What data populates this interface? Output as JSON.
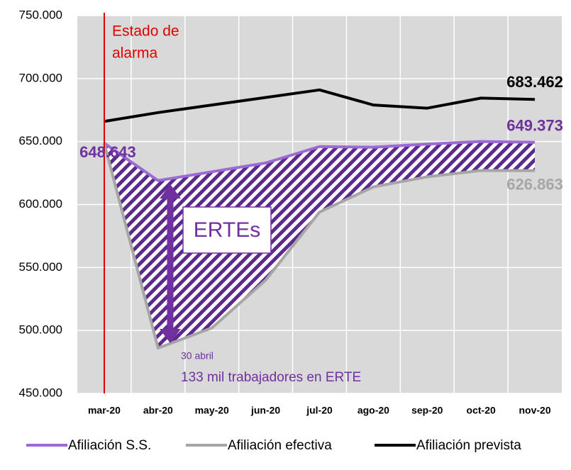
{
  "chart_data": {
    "type": "line",
    "categories": [
      "mar-20",
      "abr-20",
      "may-20",
      "jun-20",
      "jul-20",
      "ago-20",
      "sep-20",
      "oct-20",
      "nov-20"
    ],
    "series": [
      {
        "name": "Afiliación S.S.",
        "color": "#9b6ad6",
        "values": [
          648643,
          619000,
          626000,
          633000,
          646000,
          645500,
          648000,
          650000,
          649373
        ],
        "value_labels": [
          "648.643",
          null,
          null,
          null,
          null,
          null,
          null,
          null,
          "649.373"
        ],
        "label_color": "#7030a0"
      },
      {
        "name": "Afiliación efectiva",
        "color": "#a6a6a6",
        "values": [
          648643,
          486000,
          502000,
          540000,
          594000,
          614000,
          622000,
          627000,
          626863
        ],
        "value_labels": [
          null,
          null,
          null,
          null,
          null,
          null,
          null,
          null,
          "626.863"
        ],
        "label_color": "#a6a6a6"
      },
      {
        "name": "Afiliación prevista",
        "color": "#000000",
        "values": [
          666000,
          673000,
          679000,
          685000,
          691000,
          679000,
          676500,
          684500,
          683462
        ],
        "value_labels": [
          null,
          null,
          null,
          null,
          null,
          null,
          null,
          null,
          "683.462"
        ],
        "label_color": "#000000"
      }
    ],
    "ylim": [
      450000,
      750000
    ],
    "yticks": [
      {
        "value": 450000,
        "label": "450.000"
      },
      {
        "value": 500000,
        "label": "500.000"
      },
      {
        "value": 550000,
        "label": "550.000"
      },
      {
        "value": 600000,
        "label": "600.000"
      },
      {
        "value": 650000,
        "label": "650.000"
      },
      {
        "value": 700000,
        "label": "700.000"
      },
      {
        "value": 750000,
        "label": "750.000"
      }
    ],
    "grid": true,
    "legend": "bottom",
    "annotations": {
      "event": [
        "Estado de",
        "alarma"
      ],
      "box": "ERTEs",
      "date": "30 abril",
      "note": "133 mil trabajadores en ERTE"
    }
  }
}
